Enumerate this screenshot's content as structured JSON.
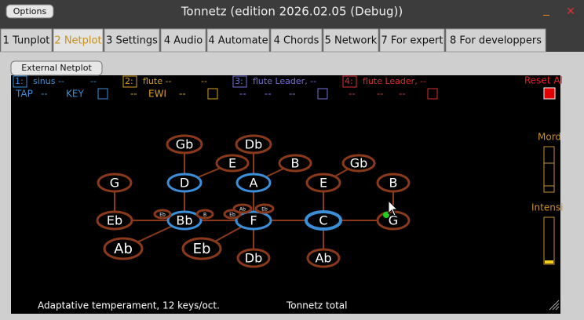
{
  "window": {
    "options": "Options",
    "title": "Tonnetz (edition 2026.02.05 (Debug))",
    "minimize": "_",
    "close": "✕"
  },
  "tabs": [
    "1 Tunplot",
    "2 Netplot",
    "3 Settings",
    "4 Audio",
    "4 Automate",
    "4 Chords",
    "5 Network",
    "7 For expert",
    "8 For developpers"
  ],
  "external_netplot": "External Netplot",
  "channels": [
    {
      "number": "1:",
      "row1": [
        "sinus --",
        "--"
      ],
      "row2": [
        "TAP",
        "--",
        "KEY"
      ]
    },
    {
      "number": "2:",
      "row1": [
        "flute --",
        "--"
      ],
      "row2": [
        "--",
        "EWI",
        "--"
      ]
    },
    {
      "number": "3:",
      "row1": [
        "flute Leader, --"
      ],
      "row2": [
        "--",
        "--",
        "--"
      ]
    },
    {
      "number": "4:",
      "row1": [
        "flute Leader, --"
      ],
      "row2": [
        "--",
        "--",
        "--"
      ]
    }
  ],
  "side": {
    "reset": "Reset Al",
    "mord": "Mord",
    "intensity": "Intensi"
  },
  "nodes": [
    "Gb",
    "Db",
    "E",
    "B",
    "Gb",
    "G",
    "D",
    "A",
    "E",
    "B",
    "Eb",
    "Bb",
    "F",
    "C",
    "G",
    "Ab",
    "Eb",
    "Db",
    "Ab",
    "Eb",
    "B",
    "Eb",
    "Ab",
    "Eb"
  ],
  "footer": {
    "temperament": "Adaptative temperament, 12 keys/oct.",
    "mode": "Tonnetz total"
  }
}
